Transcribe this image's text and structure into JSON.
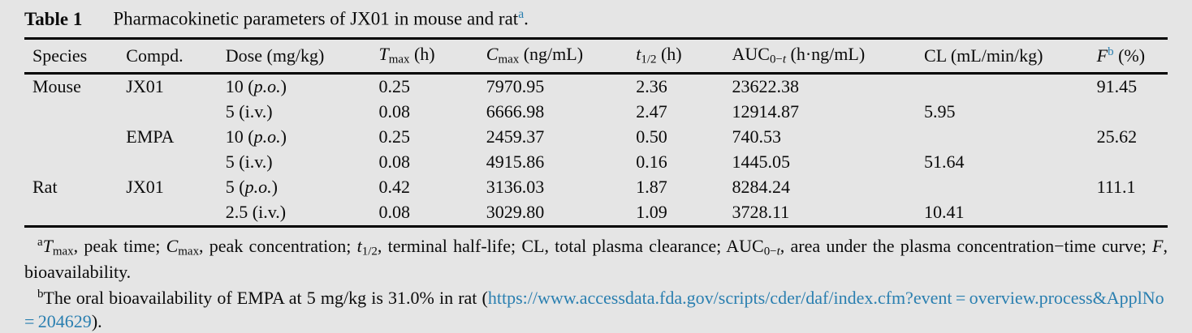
{
  "page": {
    "background": "#e5e5e5",
    "text_color": "#0b0b0b",
    "accent_color": "#2a7fb0",
    "rule_color": "#000000"
  },
  "title": {
    "parts": [
      {
        "t": "Table 1",
        "s": "b"
      },
      {
        "t": "Pharmacokinetic parameters of JX01 in mouse and rat"
      },
      {
        "t": "a",
        "s": "supa"
      },
      {
        "t": "."
      }
    ]
  },
  "table": {
    "columns": [
      {
        "key": "species",
        "parts": [
          {
            "t": "Species"
          }
        ]
      },
      {
        "key": "compd",
        "parts": [
          {
            "t": "Compd."
          }
        ]
      },
      {
        "key": "dose",
        "parts": [
          {
            "t": "Dose (mg/kg)"
          }
        ]
      },
      {
        "key": "tmax",
        "parts": [
          {
            "t": "T",
            "s": "i"
          },
          {
            "t": "max",
            "s": "sub"
          },
          {
            "t": " (h)"
          }
        ]
      },
      {
        "key": "cmax",
        "parts": [
          {
            "t": "C",
            "s": "i"
          },
          {
            "t": "max",
            "s": "sub"
          },
          {
            "t": " (ng/mL)"
          }
        ]
      },
      {
        "key": "t-half",
        "parts": [
          {
            "t": "t",
            "s": "i"
          },
          {
            "t": "1/2",
            "s": "sub"
          },
          {
            "t": " (h)"
          }
        ]
      },
      {
        "key": "auc0t",
        "parts": [
          {
            "t": "AUC"
          },
          {
            "t": "0−",
            "s": "sub"
          },
          {
            "t": "t",
            "s": "subi"
          },
          {
            "t": " (h·ng/mL)"
          }
        ]
      },
      {
        "key": "cl",
        "parts": [
          {
            "t": "CL (mL/min/kg)"
          }
        ]
      },
      {
        "key": "f",
        "parts": [
          {
            "t": "F",
            "s": "i"
          },
          {
            "t": "b",
            "s": "supa"
          },
          {
            "t": " (%)"
          }
        ]
      }
    ],
    "rows": [
      {
        "cells": [
          [
            {
              "t": "Mouse"
            }
          ],
          [
            {
              "t": "JX01"
            }
          ],
          [
            {
              "t": "10 ("
            },
            {
              "t": "p.o.",
              "s": "i"
            },
            {
              "t": ")"
            }
          ],
          [
            {
              "t": "0.25"
            }
          ],
          [
            {
              "t": "7970.95"
            }
          ],
          [
            {
              "t": "2.36"
            }
          ],
          [
            {
              "t": "23622.38"
            }
          ],
          [],
          [
            {
              "t": "91.45"
            }
          ]
        ]
      },
      {
        "cells": [
          [],
          [],
          [
            {
              "t": "5 (i.v.)"
            }
          ],
          [
            {
              "t": "0.08"
            }
          ],
          [
            {
              "t": "6666.98"
            }
          ],
          [
            {
              "t": "2.47"
            }
          ],
          [
            {
              "t": "12914.87"
            }
          ],
          [
            {
              "t": "5.95"
            }
          ],
          []
        ]
      },
      {
        "cells": [
          [],
          [
            {
              "t": "EMPA"
            }
          ],
          [
            {
              "t": "10 ("
            },
            {
              "t": "p.o.",
              "s": "i"
            },
            {
              "t": ")"
            }
          ],
          [
            {
              "t": "0.25"
            }
          ],
          [
            {
              "t": "2459.37"
            }
          ],
          [
            {
              "t": "0.50"
            }
          ],
          [
            {
              "t": "740.53"
            }
          ],
          [],
          [
            {
              "t": "25.62"
            }
          ]
        ]
      },
      {
        "cells": [
          [],
          [],
          [
            {
              "t": "5 (i.v.)"
            }
          ],
          [
            {
              "t": "0.08"
            }
          ],
          [
            {
              "t": "4915.86"
            }
          ],
          [
            {
              "t": "0.16"
            }
          ],
          [
            {
              "t": "1445.05"
            }
          ],
          [
            {
              "t": "51.64"
            }
          ],
          []
        ]
      },
      {
        "cells": [
          [
            {
              "t": "Rat"
            }
          ],
          [
            {
              "t": "JX01"
            }
          ],
          [
            {
              "t": "5 ("
            },
            {
              "t": "p.o.",
              "s": "i"
            },
            {
              "t": ")"
            }
          ],
          [
            {
              "t": "0.42"
            }
          ],
          [
            {
              "t": "3136.03"
            }
          ],
          [
            {
              "t": "1.87"
            }
          ],
          [
            {
              "t": "8284.24"
            }
          ],
          [],
          [
            {
              "t": "111.1"
            }
          ]
        ]
      },
      {
        "cells": [
          [],
          [],
          [
            {
              "t": "2.5 (i.v.)"
            }
          ],
          [
            {
              "t": "0.08"
            }
          ],
          [
            {
              "t": "3029.80"
            }
          ],
          [
            {
              "t": "1.09"
            }
          ],
          [
            {
              "t": "3728.11"
            }
          ],
          [
            {
              "t": "10.41"
            }
          ],
          []
        ]
      }
    ]
  },
  "footnotes": [
    {
      "parts": [
        {
          "t": "a",
          "s": "sup"
        },
        {
          "t": "T",
          "s": "i"
        },
        {
          "t": "max",
          "s": "sub"
        },
        {
          "t": ", peak time; "
        },
        {
          "t": "C",
          "s": "i"
        },
        {
          "t": "max",
          "s": "sub"
        },
        {
          "t": ", peak concentration; "
        },
        {
          "t": "t",
          "s": "i"
        },
        {
          "t": "1/2",
          "s": "sub"
        },
        {
          "t": ", terminal half-life; CL, total plasma clearance; AUC"
        },
        {
          "t": "0−",
          "s": "sub"
        },
        {
          "t": "t",
          "s": "subi"
        },
        {
          "t": ", area under the plasma concentration−time curve; "
        },
        {
          "t": "F",
          "s": "i"
        },
        {
          "t": ", bioavailability."
        }
      ]
    },
    {
      "parts": [
        {
          "t": "b",
          "s": "sup"
        },
        {
          "t": "The oral bioavailability of EMPA at 5 mg/kg is 31.0% in rat ("
        },
        {
          "t": "https://www.accessdata.fda.gov/scripts/cder/daf/index.cfm?event = overview.process&ApplNo = 204629",
          "s": "link"
        },
        {
          "t": ")."
        }
      ]
    }
  ]
}
